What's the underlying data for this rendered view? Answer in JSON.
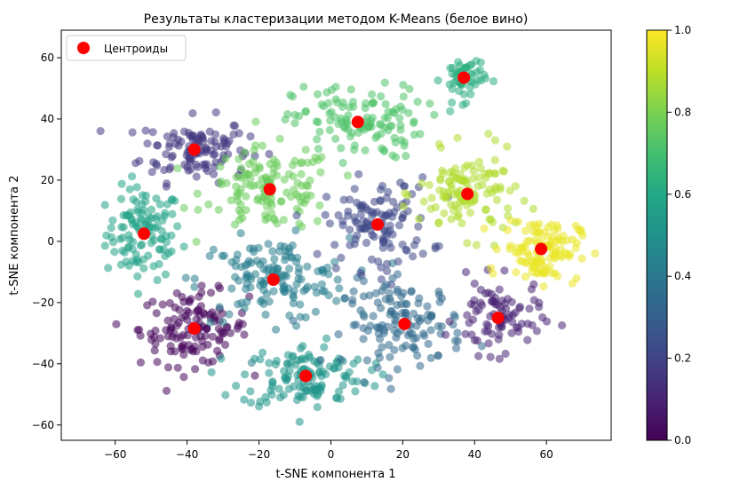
{
  "chart_data": {
    "type": "scatter",
    "title": "Результаты кластеризации методом K-Means (белое вино)",
    "xlabel": "t-SNE компонента 1",
    "ylabel": "t-SNE компонента 2",
    "xlim": [
      -75,
      78
    ],
    "ylim": [
      -65,
      69
    ],
    "xticks": [
      -60,
      -40,
      -20,
      0,
      20,
      40,
      60
    ],
    "yticks": [
      -60,
      -40,
      -20,
      0,
      20,
      40,
      60
    ],
    "grid": false,
    "legend": {
      "position": "top-left",
      "entries": [
        "Центроиды"
      ]
    },
    "legend_color": "#ff0000",
    "colormap": {
      "name": "viridis",
      "range": [
        0,
        1
      ],
      "ticks": [
        0.0,
        0.2,
        0.4,
        0.6,
        0.8,
        1.0
      ],
      "tick_labels": [
        "0.0",
        "0.2",
        "0.4",
        "0.6",
        "0.8",
        "1.0"
      ]
    },
    "centroids": {
      "name": "Центроиды",
      "color": "#ff0000",
      "points": [
        {
          "x": -52,
          "y": 2.5
        },
        {
          "x": -38,
          "y": 30
        },
        {
          "x": -38,
          "y": -28.5
        },
        {
          "x": -17,
          "y": 17
        },
        {
          "x": -16,
          "y": -12.5
        },
        {
          "x": -7,
          "y": -44
        },
        {
          "x": 7.5,
          "y": 39
        },
        {
          "x": 13,
          "y": 5.5
        },
        {
          "x": 20.5,
          "y": -27
        },
        {
          "x": 37,
          "y": 53.5
        },
        {
          "x": 38,
          "y": 15.5
        },
        {
          "x": 46.5,
          "y": -25
        },
        {
          "x": 58.5,
          "y": -2.5
        }
      ]
    },
    "clusters": [
      {
        "cx": -52,
        "cy": 2.5,
        "sx": 7,
        "sy": 10,
        "n": 110,
        "value": 0.58
      },
      {
        "cx": -38,
        "cy": 30,
        "sx": 10,
        "sy": 7,
        "n": 120,
        "value": 0.17
      },
      {
        "cx": -38,
        "cy": -28.5,
        "sx": 10,
        "sy": 8,
        "n": 130,
        "value": 0.02
      },
      {
        "cx": -17,
        "cy": 17,
        "sx": 12,
        "sy": 9,
        "n": 130,
        "value": 0.77
      },
      {
        "cx": -16,
        "cy": -12.5,
        "sx": 14,
        "sy": 9,
        "n": 140,
        "value": 0.42
      },
      {
        "cx": -7,
        "cy": -44,
        "sx": 12,
        "sy": 7,
        "n": 130,
        "value": 0.52
      },
      {
        "cx": 7.5,
        "cy": 39,
        "sx": 12,
        "sy": 8,
        "n": 120,
        "value": 0.72
      },
      {
        "cx": 13,
        "cy": 5.5,
        "sx": 10,
        "sy": 10,
        "n": 120,
        "value": 0.22
      },
      {
        "cx": 20.5,
        "cy": -27,
        "sx": 11,
        "sy": 9,
        "n": 130,
        "value": 0.34
      },
      {
        "cx": 37,
        "cy": 53.5,
        "sx": 4,
        "sy": 5,
        "n": 50,
        "value": 0.62
      },
      {
        "cx": 38,
        "cy": 15.5,
        "sx": 9,
        "sy": 9,
        "n": 120,
        "value": 0.88
      },
      {
        "cx": 46.5,
        "cy": -25,
        "sx": 8,
        "sy": 8,
        "n": 90,
        "value": 0.1
      },
      {
        "cx": 58.5,
        "cy": -2.5,
        "sx": 7,
        "sy": 7,
        "n": 120,
        "value": 0.97
      }
    ]
  }
}
